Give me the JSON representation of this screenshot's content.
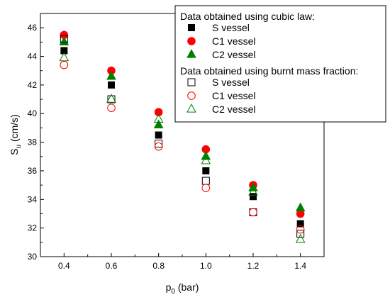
{
  "chart_data": {
    "type": "scatter",
    "xlabel": "p",
    "xlabel_sub": "0",
    "xlabel_unit": " (bar)",
    "ylabel": "S",
    "ylabel_sub": "u",
    "ylabel_unit": " (cm/s)",
    "xlim": [
      0.3,
      1.5
    ],
    "ylim": [
      30,
      47
    ],
    "xticks": [
      0.4,
      0.6,
      0.8,
      1.0,
      1.2,
      1.4
    ],
    "xtick_labels": [
      "0.4",
      "0.6",
      "0.8",
      "1.0",
      "1.2",
      "1.4"
    ],
    "yticks": [
      30,
      32,
      34,
      36,
      38,
      40,
      42,
      44,
      46
    ],
    "ytick_labels": [
      "30",
      "32",
      "34",
      "36",
      "38",
      "40",
      "42",
      "44",
      "46"
    ],
    "grid": false,
    "legend_position": "top-right",
    "legend_groups": [
      {
        "title": "Data obtained using cubic law:"
      },
      {
        "title": "Data obtained using burnt mass fraction:"
      }
    ],
    "series": [
      {
        "name": "S  vessel",
        "group": 0,
        "marker": "square",
        "filled": true,
        "color": "#000000",
        "x": [
          0.4,
          0.6,
          0.8,
          1.0,
          1.2,
          1.4
        ],
        "y": [
          44.4,
          42.0,
          38.5,
          36.0,
          34.2,
          32.3
        ]
      },
      {
        "name": "C1 vessel",
        "group": 0,
        "marker": "circle",
        "filled": true,
        "color": "#ff0000",
        "x": [
          0.4,
          0.6,
          0.8,
          1.0,
          1.2,
          1.4
        ],
        "y": [
          45.5,
          43.0,
          40.1,
          37.5,
          35.0,
          33.0
        ]
      },
      {
        "name": "C2 vessel",
        "group": 0,
        "marker": "triangle",
        "filled": true,
        "color": "#008000",
        "x": [
          0.4,
          0.6,
          0.8,
          1.0,
          1.2,
          1.4
        ],
        "y": [
          45.0,
          42.6,
          39.2,
          37.0,
          34.8,
          33.4
        ]
      },
      {
        "name": "S  vessel",
        "group": 1,
        "marker": "square",
        "filled": false,
        "color": "#000000",
        "x": [
          0.4,
          0.6,
          0.8,
          1.0,
          1.2,
          1.4
        ],
        "y": [
          45.2,
          41.0,
          37.9,
          35.3,
          33.1,
          31.6
        ]
      },
      {
        "name": "C1 vessel",
        "group": 1,
        "marker": "circle",
        "filled": false,
        "color": "#ff0000",
        "x": [
          0.4,
          0.6,
          0.8,
          1.0,
          1.2,
          1.4
        ],
        "y": [
          43.4,
          40.4,
          37.7,
          34.8,
          33.1,
          31.9
        ]
      },
      {
        "name": "C2 vessel",
        "group": 1,
        "marker": "triangle",
        "filled": false,
        "color": "#008000",
        "x": [
          0.4,
          0.6,
          0.8,
          1.0,
          1.2,
          1.4
        ],
        "y": [
          43.9,
          41.0,
          39.6,
          36.7,
          34.5,
          31.2
        ]
      }
    ]
  }
}
